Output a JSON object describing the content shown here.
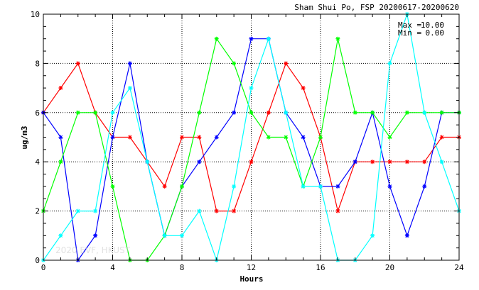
{
  "chart_data": {
    "type": "line",
    "title": "Sham Shui Po, FSP 20200617-20200620",
    "xlabel": "Hours",
    "ylabel": "ug/m3",
    "xlim": [
      0,
      24
    ],
    "ylim": [
      0,
      10
    ],
    "x_ticks": [
      0,
      4,
      8,
      12,
      16,
      20,
      24
    ],
    "y_ticks": [
      0,
      2,
      4,
      6,
      8,
      10
    ],
    "grid": true,
    "stats": {
      "max_label": "Max =",
      "max_value": "10.00",
      "min_label": "Min =",
      "min_value": "0.00"
    },
    "watermark": "2020 EVF, HKUST",
    "x": [
      0,
      1,
      2,
      3,
      4,
      5,
      6,
      7,
      8,
      9,
      10,
      11,
      12,
      13,
      14,
      15,
      16,
      17,
      18,
      19,
      20,
      21,
      22,
      23,
      24
    ],
    "series": [
      {
        "color": "#ff0000",
        "values": [
          6,
          7,
          8,
          6,
          5,
          5,
          4,
          3,
          5,
          5,
          2,
          2,
          4,
          6,
          8,
          7,
          5,
          2,
          4,
          4,
          4,
          4,
          4,
          5,
          5
        ]
      },
      {
        "color": "#0000ff",
        "values": [
          6,
          5,
          0,
          1,
          5,
          8,
          4,
          1,
          3,
          4,
          5,
          6,
          9,
          9,
          6,
          5,
          3,
          3,
          4,
          6,
          3,
          1,
          3,
          6,
          6
        ]
      },
      {
        "color": "#00ff00",
        "values": [
          2,
          4,
          6,
          6,
          3,
          0,
          0,
          1,
          3,
          6,
          9,
          8,
          6,
          5,
          5,
          3,
          5,
          9,
          6,
          6,
          5,
          6,
          6,
          6,
          6
        ]
      },
      {
        "color": "#00ffff",
        "values": [
          0,
          1,
          2,
          2,
          6,
          7,
          4,
          1,
          1,
          2,
          0,
          3,
          7,
          9,
          6,
          3,
          3,
          0,
          0,
          1,
          8,
          10,
          6,
          4,
          2
        ]
      }
    ]
  }
}
